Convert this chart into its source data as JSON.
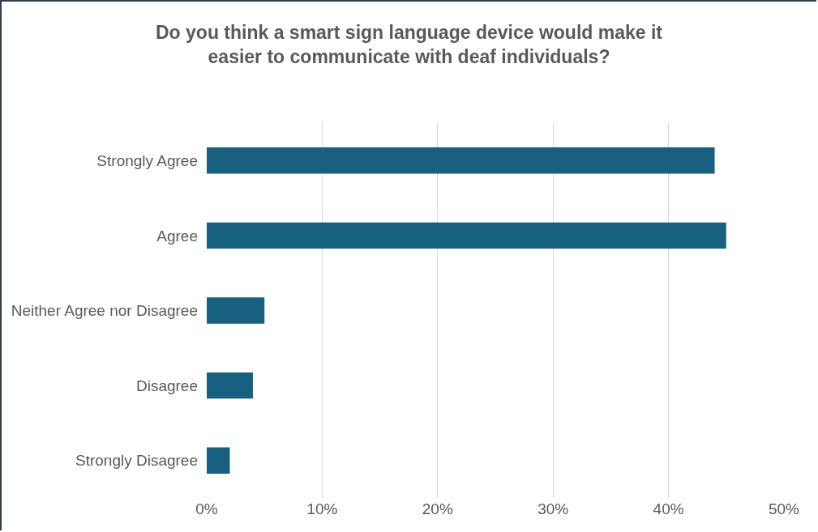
{
  "chart_data": {
    "type": "bar",
    "orientation": "horizontal",
    "title": "Do you think a smart sign language device would make it easier to communicate with deaf individuals?",
    "categories": [
      "Strongly Agree",
      "Agree",
      "Neither Agree nor Disagree",
      "Disagree",
      "Strongly Disagree"
    ],
    "values": [
      44,
      45,
      5,
      4,
      2
    ],
    "color": "#17607f",
    "xlim": [
      0,
      50
    ],
    "xticks": [
      {
        "value": 0,
        "label": "0%"
      },
      {
        "value": 10,
        "label": "10%"
      },
      {
        "value": 20,
        "label": "20%"
      },
      {
        "value": 30,
        "label": "30%"
      },
      {
        "value": 40,
        "label": "40%"
      },
      {
        "value": 50,
        "label": "50%"
      }
    ],
    "grid": "x"
  }
}
